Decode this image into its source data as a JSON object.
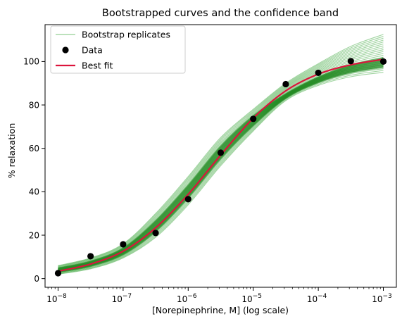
{
  "chart_data": {
    "type": "line",
    "title": "Bootstrapped curves and the confidence band",
    "xlabel": "[Norepinephrine, M] (log scale)",
    "ylabel": "% relaxation",
    "x_scale": "log",
    "xlim": [
      6.31e-09,
      0.001585
    ],
    "ylim": [
      -4,
      117
    ],
    "grid": false,
    "legend_position": "top-left",
    "x_ticks": [
      {
        "value": 1e-08,
        "base": "10",
        "exp": "−8"
      },
      {
        "value": 1e-07,
        "base": "10",
        "exp": "−7"
      },
      {
        "value": 1e-06,
        "base": "10",
        "exp": "−6"
      },
      {
        "value": 1e-05,
        "base": "10",
        "exp": "−5"
      },
      {
        "value": 0.0001,
        "base": "10",
        "exp": "−4"
      },
      {
        "value": 0.001,
        "base": "10",
        "exp": "−3"
      }
    ],
    "y_ticks": [
      0,
      20,
      40,
      60,
      80,
      100
    ],
    "legend": [
      {
        "label": "Bootstrap replicates",
        "kind": "line",
        "color": "#2ca02c"
      },
      {
        "label": "Data",
        "kind": "marker",
        "color": "#000000"
      },
      {
        "label": "Best fit",
        "kind": "line",
        "color": "#dc143c"
      }
    ],
    "series": [
      {
        "name": "Data",
        "kind": "scatter",
        "color": "#000000",
        "x": [
          1e-08,
          3.16e-08,
          1e-07,
          3.16e-07,
          1e-06,
          3.16e-06,
          1e-05,
          3.16e-05,
          0.0001,
          0.000316,
          0.001
        ],
        "y": [
          2.5,
          10.3,
          15.8,
          21,
          36.6,
          58,
          73.6,
          89.6,
          94.8,
          100.2,
          100
        ]
      },
      {
        "name": "Best fit",
        "kind": "line",
        "color": "#dc143c",
        "x": [
          1e-08,
          3.16e-08,
          1e-07,
          3.16e-07,
          1e-06,
          3.16e-06,
          1e-05,
          3.16e-05,
          0.0001,
          0.000316,
          0.001
        ],
        "y": [
          3.4,
          6.7,
          12.6,
          23.4,
          38.8,
          56.9,
          73.9,
          86.5,
          94.2,
          98.5,
          101.0
        ]
      },
      {
        "name": "Bootstrap replicates",
        "kind": "band",
        "color": "#2ca02c",
        "x": [
          1e-08,
          3.16e-08,
          1e-07,
          3.16e-07,
          1e-06,
          3.16e-06,
          1e-05,
          3.16e-05,
          0.0001,
          0.000316,
          0.001
        ],
        "lower": [
          2.0,
          4.5,
          9.5,
          19.0,
          34.0,
          52.0,
          68.0,
          82.0,
          89.0,
          93.0,
          95.0
        ],
        "upper": [
          6.0,
          9.5,
          16.0,
          30.0,
          47.0,
          65.0,
          78.0,
          90.0,
          99.0,
          107.0,
          112.5
        ]
      }
    ]
  }
}
